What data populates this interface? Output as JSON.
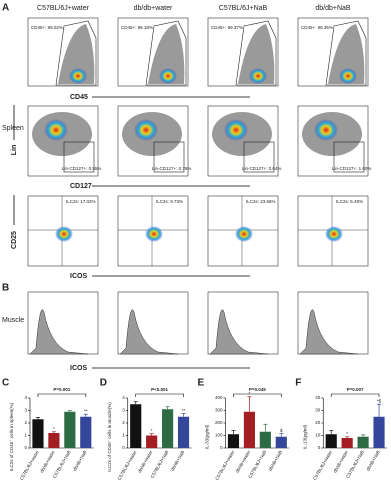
{
  "figure": {
    "panel_labels": [
      "A",
      "B",
      "C",
      "D",
      "E",
      "F"
    ],
    "groups": [
      "C57BL/6J+water",
      "db/db+water",
      "C57BL/6J+NaB",
      "db/db+NaB"
    ],
    "row_labels": {
      "spleen": "Spleen",
      "muscle": "Muscle"
    },
    "axis_labels": {
      "cd45": "CD45",
      "lin": "Lin",
      "cd127": "CD127",
      "cd25": "CD25",
      "icos": "ICOS",
      "icos_muscle": "ICOS"
    },
    "gates": {
      "cd45": [
        "CD45+: 99.02%",
        "CD45+: 98.18%",
        "CD45+: 99.37%",
        "CD45+: 99.35%"
      ],
      "lin_cd127": [
        "Lin-CD127+: 0.55%",
        "Lin-CD127+: 0.76%",
        "Lin-CD127+: 0.64%",
        "Lin-CD127+: 1.60%"
      ],
      "ilc2": [
        "ILC2s: 17.02%",
        "ILC2s: 9.73%",
        "ILC2s: 23.66%",
        "ILC2s: 5.49%"
      ]
    }
  },
  "chart_data": [
    {
      "type": "bar",
      "ylabel": "ILC2s of CD45⁺ cells in spleen(%)",
      "p_value": "P=0.001",
      "categories": [
        "C57BL/6J+water",
        "db/db+water",
        "C57BL/6J+NaB",
        "db/db+NaB"
      ],
      "values": [
        2.3,
        1.2,
        2.9,
        2.5
      ],
      "errors": [
        0.15,
        0.1,
        0.1,
        0.2
      ],
      "colors": [
        "#111111",
        "#a31f24",
        "#2d6b45",
        "#34479a"
      ],
      "annotations": [
        null,
        "*",
        null,
        "**"
      ],
      "ylim": [
        0,
        4
      ],
      "yticks": [
        0,
        1,
        2,
        3,
        4
      ]
    },
    {
      "type": "bar",
      "ylabel": "ILC2s of CD45⁺ cells in muscle(%)",
      "p_value": "P<0.001",
      "categories": [
        "C57BL/6J+water",
        "db/db+water",
        "C57BL/6J+NaB",
        "db/db+NaB"
      ],
      "values": [
        3.5,
        1.0,
        3.1,
        2.5
      ],
      "errors": [
        0.2,
        0.15,
        0.2,
        0.25
      ],
      "colors": [
        "#111111",
        "#a31f24",
        "#2d6b45",
        "#34479a"
      ],
      "annotations": [
        null,
        "*",
        null,
        "**"
      ],
      "ylim": [
        0,
        4
      ],
      "yticks": [
        0,
        1,
        2,
        3,
        4
      ]
    },
    {
      "type": "bar",
      "ylabel": "IL-33(pg/ml)",
      "p_value": "P=0.045",
      "categories": [
        "C57BL/6J+water",
        "db/db+water",
        "C57BL/6J+NaB",
        "db/db+NaB"
      ],
      "values": [
        110,
        290,
        130,
        90
      ],
      "errors": [
        30,
        120,
        60,
        25
      ],
      "colors": [
        "#111111",
        "#a31f24",
        "#2d6b45",
        "#34479a"
      ],
      "annotations": [
        null,
        "*",
        null,
        "$"
      ],
      "ylim": [
        0,
        400
      ],
      "yticks": [
        0,
        100,
        200,
        300,
        400
      ]
    },
    {
      "type": "bar",
      "ylabel": "IL-13(pg/ml)",
      "p_value": "P=0.007",
      "categories": [
        "C57BL/6J+water",
        "db/db+water",
        "C57BL/6J+NaB",
        "db/db+NaB"
      ],
      "values": [
        11,
        8,
        9,
        25
      ],
      "errors": [
        3,
        1,
        1.5,
        10
      ],
      "colors": [
        "#111111",
        "#a31f24",
        "#2d6b45",
        "#34479a"
      ],
      "annotations": [
        null,
        "*",
        null,
        "*$"
      ],
      "ylim": [
        0,
        40
      ],
      "yticks": [
        0,
        10,
        20,
        30,
        40
      ]
    }
  ]
}
